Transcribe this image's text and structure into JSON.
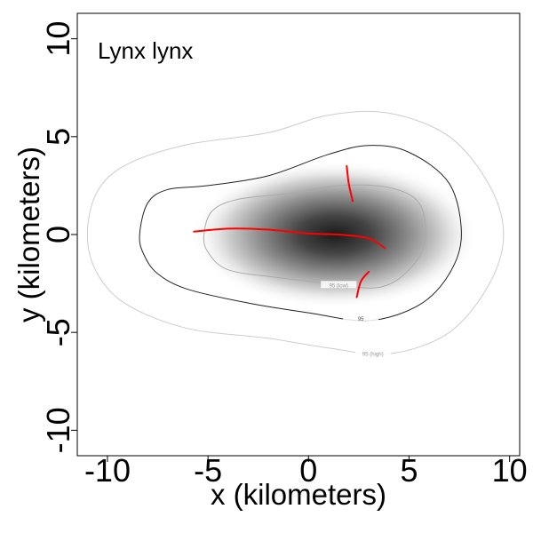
{
  "chart_data": {
    "type": "contour",
    "title": "Lynx lynx",
    "xlabel": "x (kilometers)",
    "ylabel": "y (kilometers)",
    "xlim": [
      -11.5,
      10.5
    ],
    "ylim": [
      -11.3,
      11.3
    ],
    "x_ticks": [
      -10,
      -5,
      0,
      5,
      10
    ],
    "y_ticks": [
      -10,
      -5,
      0,
      5,
      10
    ],
    "x_tick_labels": [
      "-10",
      "-5",
      "0",
      "5",
      "10"
    ],
    "y_tick_labels": [
      "-10",
      "-5",
      "0",
      "5",
      "10"
    ],
    "density_center": [
      1.3,
      0.0
    ],
    "contours": [
      {
        "name": "95 (low)",
        "color": "#aaaaaa",
        "label_at": [
          1.5,
          -2.6
        ],
        "points": [
          [
            -5.2,
            0
          ],
          [
            -4.8,
            1.2
          ],
          [
            -3.5,
            1.8
          ],
          [
            -1,
            2.1
          ],
          [
            1.5,
            2.5
          ],
          [
            4,
            2.4
          ],
          [
            5.5,
            1.6
          ],
          [
            5.8,
            -0.3
          ],
          [
            5,
            -1.8
          ],
          [
            3.5,
            -2.7
          ],
          [
            1,
            -2.5
          ],
          [
            -1.5,
            -2.2
          ],
          [
            -4,
            -1.8
          ],
          [
            -5,
            -0.9
          ]
        ]
      },
      {
        "name": "95",
        "color": "#222222",
        "label_at": [
          2.6,
          -4.3
        ],
        "points": [
          [
            -8.4,
            0
          ],
          [
            -8,
            1.6
          ],
          [
            -7,
            2.3
          ],
          [
            -5,
            2.5
          ],
          [
            -2,
            3
          ],
          [
            1,
            4.1
          ],
          [
            3,
            4.55
          ],
          [
            5,
            4.2
          ],
          [
            7,
            2.6
          ],
          [
            7.6,
            0
          ],
          [
            7,
            -2
          ],
          [
            5.5,
            -3.6
          ],
          [
            3,
            -4.4
          ],
          [
            0,
            -4
          ],
          [
            -3,
            -3.5
          ],
          [
            -6,
            -2.8
          ],
          [
            -7.5,
            -2
          ],
          [
            -8.2,
            -1
          ]
        ]
      },
      {
        "name": "95 (high)",
        "color": "#cccccc",
        "label_at": [
          3.2,
          -6.1
        ],
        "points": [
          [
            -11,
            0
          ],
          [
            -10.5,
            2.2
          ],
          [
            -9,
            3.6
          ],
          [
            -6,
            4.6
          ],
          [
            -2,
            5.2
          ],
          [
            1,
            6.1
          ],
          [
            4,
            6.2
          ],
          [
            7,
            5
          ],
          [
            9,
            2.5
          ],
          [
            9.7,
            0
          ],
          [
            9,
            -2.5
          ],
          [
            7,
            -5
          ],
          [
            4,
            -6.1
          ],
          [
            1,
            -5.8
          ],
          [
            -2,
            -5.3
          ],
          [
            -6,
            -4.8
          ],
          [
            -9,
            -3.6
          ],
          [
            -10.5,
            -2
          ]
        ]
      }
    ],
    "tracks": {
      "color": "#ff0000",
      "lines": [
        [
          [
            -5.7,
            0.15
          ],
          [
            -4,
            0.3
          ],
          [
            -2,
            0.25
          ],
          [
            0,
            0.05
          ],
          [
            1.5,
            0
          ],
          [
            3,
            -0.2
          ],
          [
            3.8,
            -0.7
          ]
        ],
        [
          [
            1.9,
            3.5
          ],
          [
            2,
            2.6
          ],
          [
            2.2,
            1.7
          ]
        ],
        [
          [
            3,
            -1.9
          ],
          [
            2.6,
            -2.4
          ],
          [
            2.4,
            -3.2
          ]
        ]
      ]
    }
  }
}
